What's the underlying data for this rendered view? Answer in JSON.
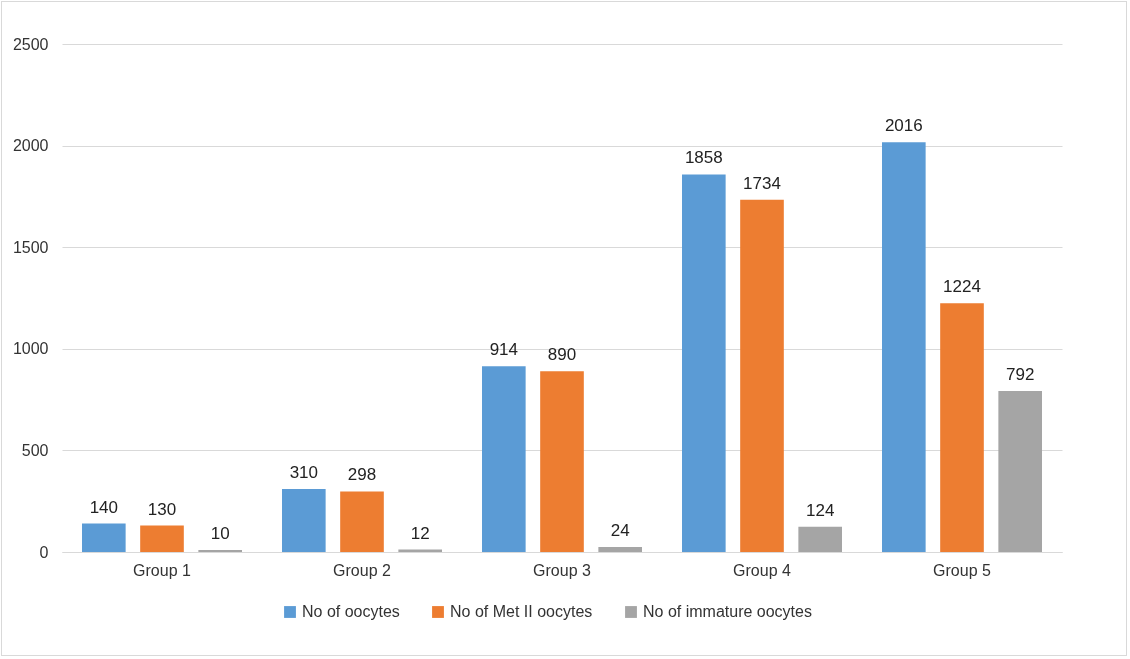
{
  "chart_data": {
    "type": "bar",
    "categories": [
      "Group 1",
      "Group 2",
      "Group 3",
      "Group 4",
      "Group 5"
    ],
    "series": [
      {
        "name": "No of oocytes",
        "color": "#5b9bd5",
        "values": [
          140,
          310,
          914,
          1858,
          2016
        ]
      },
      {
        "name": "No of Met II oocytes",
        "color": "#ed7d31",
        "values": [
          130,
          298,
          890,
          1734,
          1224
        ]
      },
      {
        "name": "No of immature oocytes",
        "color": "#a5a5a5",
        "values": [
          10,
          12,
          24,
          124,
          792
        ]
      }
    ],
    "ylim": [
      0,
      2500
    ],
    "yticks": [
      0,
      500,
      1000,
      1500,
      2000,
      2500
    ],
    "grid": "y",
    "legend": "bottom",
    "data_labels": true
  }
}
